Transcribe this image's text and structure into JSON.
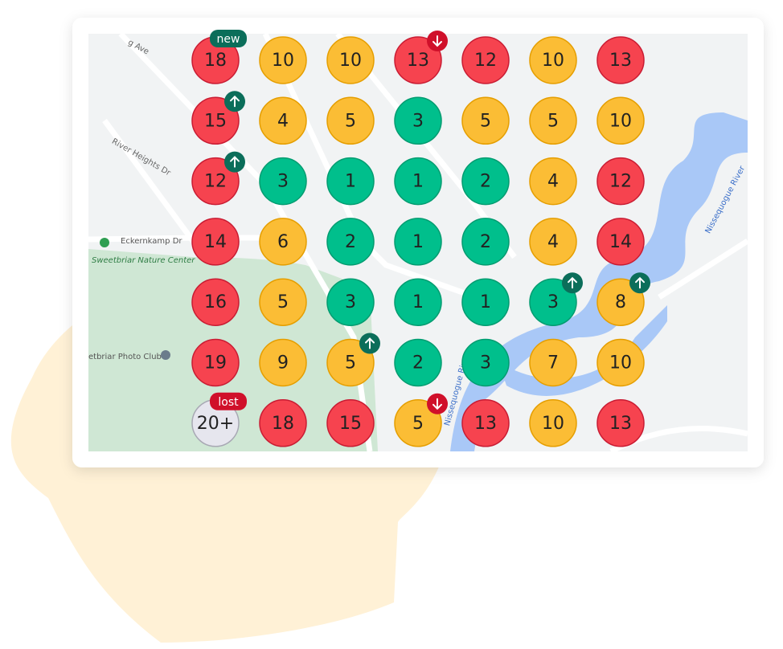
{
  "grid": {
    "colors": {
      "red": "#f6434f",
      "yellow": "#fbbd35",
      "green": "#00bf8c",
      "grey": "#e6e6ee"
    },
    "rows": [
      [
        {
          "text": "18",
          "color": "red",
          "badge": "new"
        },
        {
          "text": "10",
          "color": "yellow"
        },
        {
          "text": "10",
          "color": "yellow"
        },
        {
          "text": "13",
          "color": "red",
          "trend": "down"
        },
        {
          "text": "12",
          "color": "red"
        },
        {
          "text": "10",
          "color": "yellow"
        },
        {
          "text": "13",
          "color": "red"
        }
      ],
      [
        {
          "text": "15",
          "color": "red",
          "trend": "up"
        },
        {
          "text": "4",
          "color": "yellow"
        },
        {
          "text": "5",
          "color": "yellow"
        },
        {
          "text": "3",
          "color": "green"
        },
        {
          "text": "5",
          "color": "yellow"
        },
        {
          "text": "5",
          "color": "yellow"
        },
        {
          "text": "10",
          "color": "yellow"
        }
      ],
      [
        {
          "text": "12",
          "color": "red",
          "trend": "up"
        },
        {
          "text": "3",
          "color": "green"
        },
        {
          "text": "1",
          "color": "green"
        },
        {
          "text": "1",
          "color": "green"
        },
        {
          "text": "2",
          "color": "green"
        },
        {
          "text": "4",
          "color": "yellow"
        },
        {
          "text": "12",
          "color": "red"
        }
      ],
      [
        {
          "text": "14",
          "color": "red"
        },
        {
          "text": "6",
          "color": "yellow"
        },
        {
          "text": "2",
          "color": "green"
        },
        {
          "text": "1",
          "color": "green"
        },
        {
          "text": "2",
          "color": "green"
        },
        {
          "text": "4",
          "color": "yellow"
        },
        {
          "text": "14",
          "color": "red"
        }
      ],
      [
        {
          "text": "16",
          "color": "red"
        },
        {
          "text": "5",
          "color": "yellow"
        },
        {
          "text": "3",
          "color": "green"
        },
        {
          "text": "1",
          "color": "green"
        },
        {
          "text": "1",
          "color": "green"
        },
        {
          "text": "3",
          "color": "green",
          "trend": "up"
        },
        {
          "text": "8",
          "color": "yellow",
          "trend": "up"
        }
      ],
      [
        {
          "text": "19",
          "color": "red"
        },
        {
          "text": "9",
          "color": "yellow"
        },
        {
          "text": "5",
          "color": "yellow",
          "trend": "up"
        },
        {
          "text": "2",
          "color": "green"
        },
        {
          "text": "3",
          "color": "green"
        },
        {
          "text": "7",
          "color": "yellow"
        },
        {
          "text": "10",
          "color": "yellow"
        }
      ],
      [
        {
          "text": "20+",
          "color": "grey",
          "badge": "lost"
        },
        {
          "text": "18",
          "color": "red"
        },
        {
          "text": "15",
          "color": "red"
        },
        {
          "text": "5",
          "color": "yellow",
          "trend": "down"
        },
        {
          "text": "13",
          "color": "red"
        },
        {
          "text": "10",
          "color": "yellow"
        },
        {
          "text": "13",
          "color": "red"
        }
      ]
    ]
  },
  "map_labels": [
    "Sweetbriar Nature Center",
    "Eckernkamp Dr",
    "etbriar Photo Club",
    "River Heights Dr",
    "Nissequogue River",
    "Nissequogue River",
    "g Ave"
  ]
}
